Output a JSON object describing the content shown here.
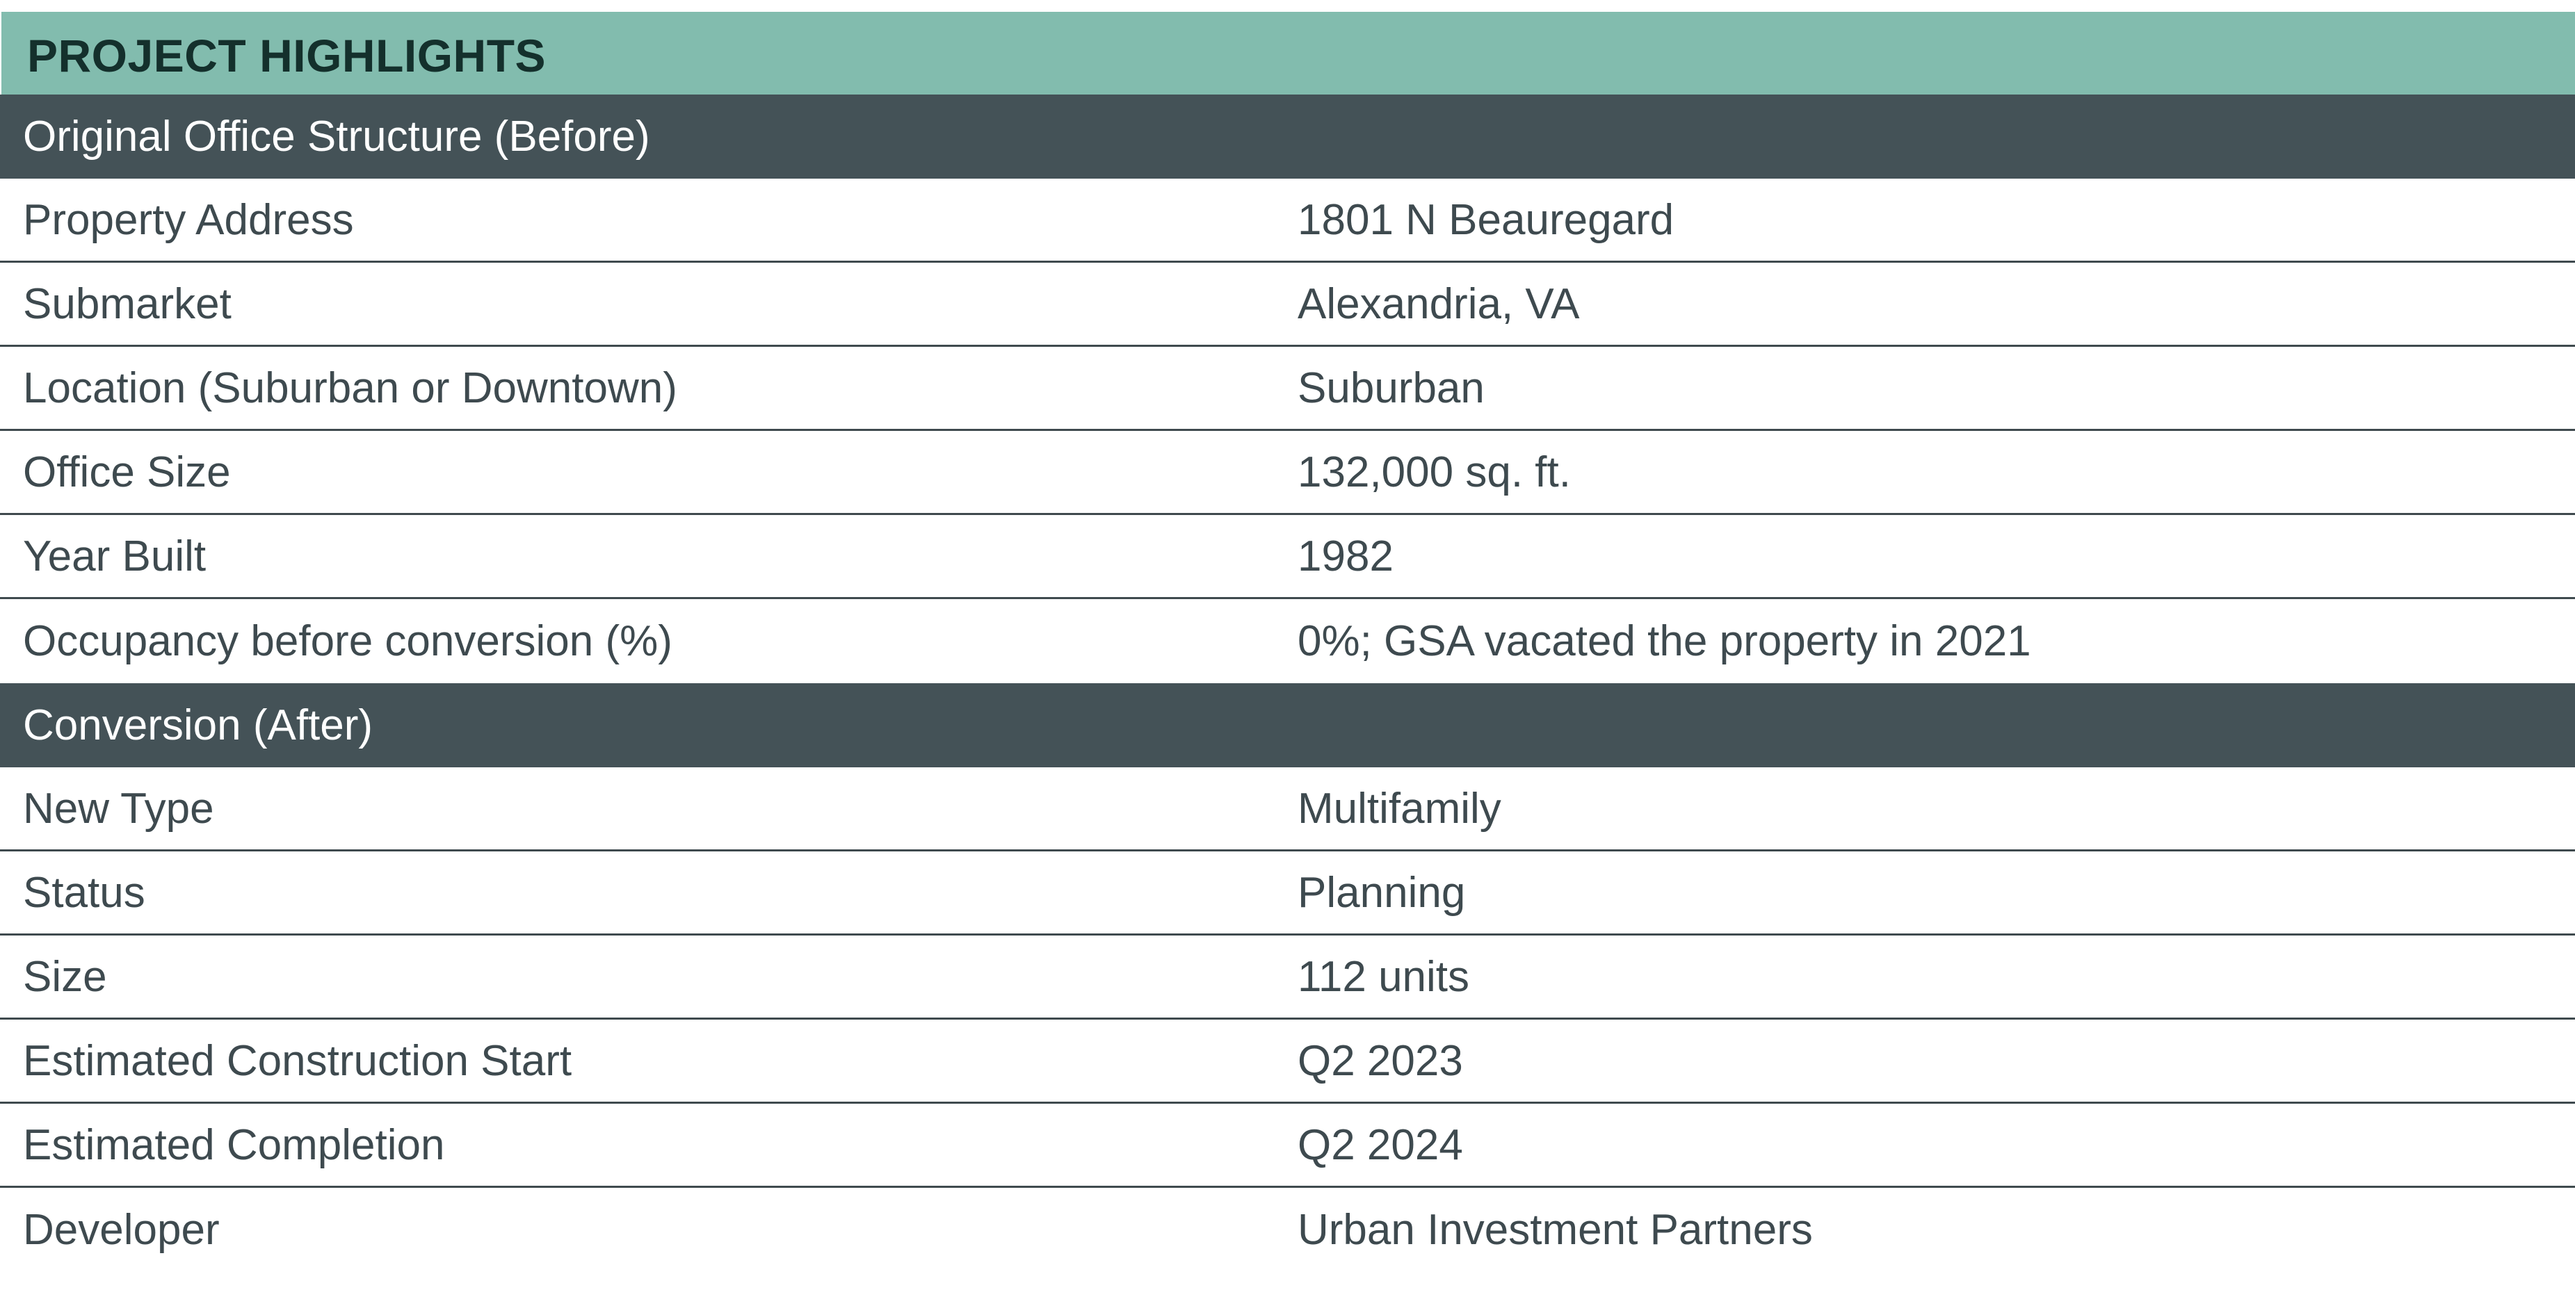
{
  "title": "PROJECT HIGHLIGHTS",
  "sections": [
    {
      "heading": "Original Office Structure (Before)",
      "rows": [
        {
          "label": "Property Address",
          "value": "1801 N Beauregard"
        },
        {
          "label": "Submarket",
          "value": "Alexandria, VA"
        },
        {
          "label": "Location (Suburban or Downtown)",
          "value": "Suburban"
        },
        {
          "label": "Office Size",
          "value": "132,000 sq. ft."
        },
        {
          "label": "Year Built",
          "value": "1982"
        },
        {
          "label": "Occupancy before conversion (%)",
          "value": "0%; GSA vacated the property in 2021"
        }
      ]
    },
    {
      "heading": "Conversion (After)",
      "rows": [
        {
          "label": "New Type",
          "value": "Multifamily"
        },
        {
          "label": "Status",
          "value": "Planning"
        },
        {
          "label": "Size",
          "value": "112 units"
        },
        {
          "label": "Estimated Construction Start",
          "value": "Q2 2023"
        },
        {
          "label": "Estimated Completion",
          "value": "Q2 2024"
        },
        {
          "label": "Developer",
          "value": "Urban Investment Partners"
        }
      ]
    }
  ],
  "colors": {
    "title_bar": "#82bcae",
    "title_text": "#14302c",
    "section_bar": "#445257",
    "section_text": "#ffffff",
    "body_text": "#3e4a4f",
    "row_rule": "#3f4a4e"
  }
}
